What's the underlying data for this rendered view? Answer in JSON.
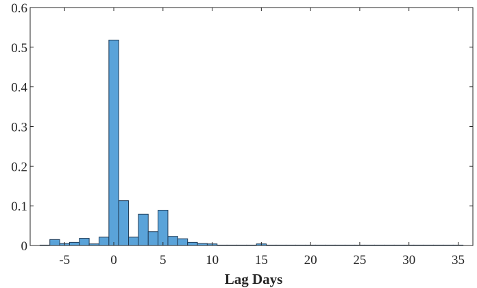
{
  "chart_data": {
    "type": "bar",
    "xlabel": "Lag Days",
    "ylabel": "",
    "xlim": [
      -8.5,
      36.5
    ],
    "ylim": [
      0,
      0.6
    ],
    "xticks": [
      -5,
      0,
      5,
      10,
      15,
      20,
      25,
      30,
      35
    ],
    "xtick_labels": [
      "-5",
      "0",
      "5",
      "10",
      "15",
      "20",
      "25",
      "30",
      "35"
    ],
    "yticks": [
      0,
      0.1,
      0.2,
      0.3,
      0.4,
      0.5,
      0.6
    ],
    "ytick_labels": [
      "0",
      "0.1",
      "0.2",
      "0.3",
      "0.4",
      "0.5",
      "0.6"
    ],
    "grid": false,
    "bar_color": "#5aa3d9",
    "bar_edge_color": "#1f3a55",
    "bins": [
      {
        "x": -7,
        "value": 0.001
      },
      {
        "x": -6,
        "value": 0.015
      },
      {
        "x": -5,
        "value": 0.005
      },
      {
        "x": -4,
        "value": 0.008
      },
      {
        "x": -3,
        "value": 0.018
      },
      {
        "x": -2,
        "value": 0.004
      },
      {
        "x": -1,
        "value": 0.021
      },
      {
        "x": 0,
        "value": 0.518
      },
      {
        "x": 1,
        "value": 0.113
      },
      {
        "x": 2,
        "value": 0.021
      },
      {
        "x": 3,
        "value": 0.079
      },
      {
        "x": 4,
        "value": 0.035
      },
      {
        "x": 5,
        "value": 0.089
      },
      {
        "x": 6,
        "value": 0.023
      },
      {
        "x": 7,
        "value": 0.017
      },
      {
        "x": 8,
        "value": 0.008
      },
      {
        "x": 9,
        "value": 0.005
      },
      {
        "x": 10,
        "value": 0.004
      },
      {
        "x": 11,
        "value": 0.001
      },
      {
        "x": 12,
        "value": 0.001
      },
      {
        "x": 13,
        "value": 0.001
      },
      {
        "x": 14,
        "value": 0.001
      },
      {
        "x": 15,
        "value": 0.004
      },
      {
        "x": 16,
        "value": 0.001
      },
      {
        "x": 17,
        "value": 0.001
      },
      {
        "x": 18,
        "value": 0.001
      },
      {
        "x": 19,
        "value": 0.001
      },
      {
        "x": 20,
        "value": 0.001
      },
      {
        "x": 21,
        "value": 0.001
      },
      {
        "x": 22,
        "value": 0.001
      },
      {
        "x": 23,
        "value": 0.001
      },
      {
        "x": 24,
        "value": 0.001
      },
      {
        "x": 25,
        "value": 0.001
      },
      {
        "x": 26,
        "value": 0.001
      },
      {
        "x": 27,
        "value": 0.001
      },
      {
        "x": 28,
        "value": 0.001
      },
      {
        "x": 29,
        "value": 0.001
      },
      {
        "x": 30,
        "value": 0.001
      },
      {
        "x": 31,
        "value": 0.001
      },
      {
        "x": 32,
        "value": 0.001
      },
      {
        "x": 33,
        "value": 0.001
      },
      {
        "x": 34,
        "value": 0.001
      },
      {
        "x": 35,
        "value": 0.001
      }
    ]
  }
}
